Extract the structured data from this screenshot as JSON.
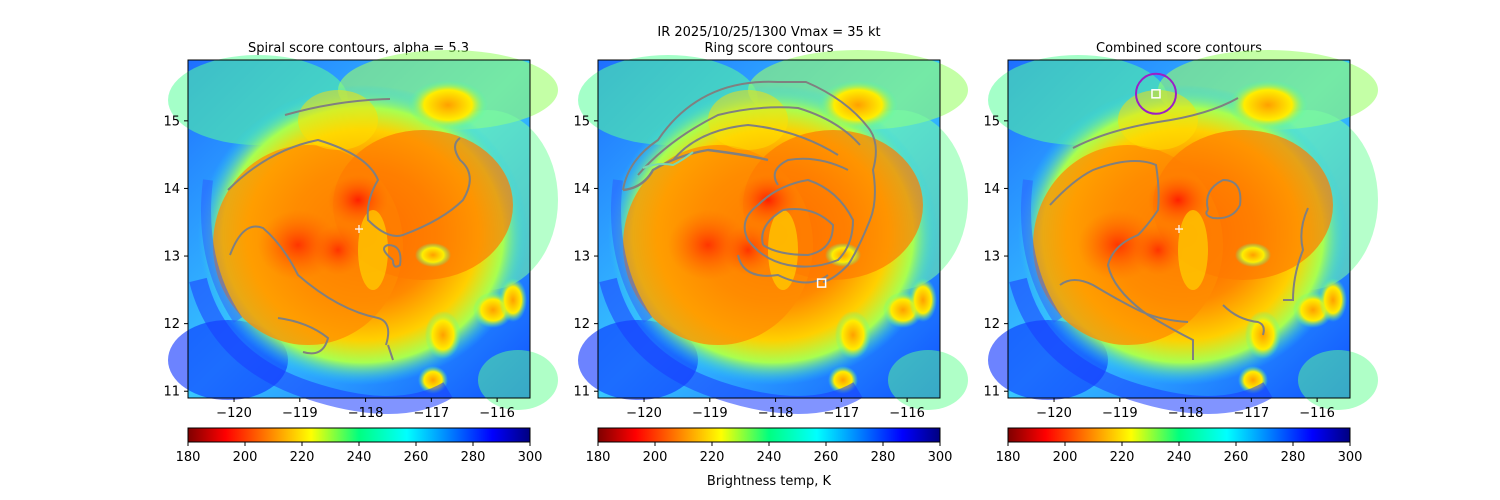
{
  "figure": {
    "suptitle_line1": "IR  2025/10/25/1300    Vmax = 35 kt",
    "colorbar_label": "Brightness temp, K"
  },
  "colors": {
    "contour": "#808080",
    "marker": "#ffffff",
    "circle": "#9b1fc7"
  },
  "chart_data": [
    {
      "type": "heatmap",
      "title": "Spiral score contours, alpha =  5.3",
      "xlim": [
        -120.7,
        -115.5
      ],
      "ylim": [
        10.9,
        15.9
      ],
      "xticks": [
        -120,
        -119,
        -118,
        -117,
        -116
      ],
      "xtick_labels": [
        "−120",
        "−119",
        "−118",
        "−117",
        "−116"
      ],
      "yticks": [
        11,
        12,
        13,
        14,
        15
      ],
      "ytick_labels": [
        "11",
        "12",
        "13",
        "14",
        "15"
      ],
      "center": [
        -118.1,
        13.4
      ],
      "colorbar": {
        "min": 180,
        "max": 300,
        "ticks": [
          180,
          200,
          220,
          240,
          260,
          280,
          300
        ],
        "tick_labels": [
          "180",
          "200",
          "220",
          "240",
          "260",
          "280",
          "300"
        ]
      }
    },
    {
      "type": "heatmap",
      "title": "Ring score contours",
      "xlim": [
        -120.7,
        -115.5
      ],
      "ylim": [
        10.9,
        15.9
      ],
      "xticks": [
        -120,
        -119,
        -118,
        -117,
        -116
      ],
      "xtick_labels": [
        "−120",
        "−119",
        "−118",
        "−117",
        "−116"
      ],
      "yticks": [
        11,
        12,
        13,
        14,
        15
      ],
      "ytick_labels": [
        "11",
        "12",
        "13",
        "14",
        "15"
      ],
      "max_marker": [
        -117.3,
        12.6
      ],
      "colorbar": {
        "min": 180,
        "max": 300,
        "ticks": [
          180,
          200,
          220,
          240,
          260,
          280,
          300
        ],
        "tick_labels": [
          "180",
          "200",
          "220",
          "240",
          "260",
          "280",
          "300"
        ]
      }
    },
    {
      "type": "heatmap",
      "title": "Combined score contours",
      "xlim": [
        -120.7,
        -115.5
      ],
      "ylim": [
        10.9,
        15.9
      ],
      "xticks": [
        -120,
        -119,
        -118,
        -117,
        -116
      ],
      "xtick_labels": [
        "−120",
        "−119",
        "−118",
        "−117",
        "−116"
      ],
      "yticks": [
        11,
        12,
        13,
        14,
        15
      ],
      "ytick_labels": [
        "11",
        "12",
        "13",
        "14",
        "15"
      ],
      "center": [
        -118.1,
        13.4
      ],
      "max_marker": [
        -118.45,
        15.4
      ],
      "colorbar": {
        "min": 180,
        "max": 300,
        "ticks": [
          180,
          200,
          220,
          240,
          260,
          280,
          300
        ],
        "tick_labels": [
          "180",
          "200",
          "220",
          "240",
          "260",
          "280",
          "300"
        ]
      }
    }
  ]
}
